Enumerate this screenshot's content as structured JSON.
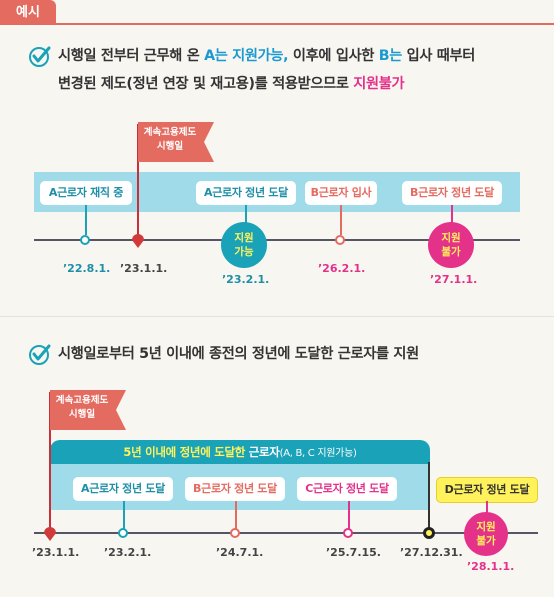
{
  "tab_label": "예시",
  "section1": {
    "line1_pre": "시행일 전부터 근무해 온 ",
    "line1_a": "A는 지원가능,",
    "line1_mid": " 이후에 입사한 ",
    "line1_b": "B는",
    "line1_post": " 입사 때부터",
    "line2_pre": "변경된 제도(정년 연장 및 재고용)를 적용받으므로 ",
    "line2_em": "지원불가",
    "flag_line1": "계속고용제도",
    "flag_line2": "시행일",
    "labels": {
      "a_working": "A근로자 재직 중",
      "a_retire": "A근로자 정년 도달",
      "b_join": "B근로자 입사",
      "b_retire": "B근로자 정년 도달"
    },
    "bubbles": {
      "ok_line1": "지원",
      "ok_line2": "가능",
      "no_line1": "지원",
      "no_line2": "불가"
    },
    "dates": {
      "d1": "’22.8.1.",
      "d2": "’23.1.1.",
      "d3": "’23.2.1.",
      "d4": "’26.2.1.",
      "d5": "’27.1.1."
    }
  },
  "section2": {
    "heading": "시행일로부터 5년 이내에 종전의 정년에 도달한 근로자를 지원",
    "flag_line1": "계속고용제도",
    "flag_line2": "시행일",
    "highlight_pre": "5년 이내에 정년에 도달한",
    "highlight_post": " 근로자",
    "highlight_note": "(A, B, C 지원가능)",
    "labels": {
      "a": "A근로자 정년 도달",
      "b": "B근로자 정년 도달",
      "c": "C근로자 정년 도달",
      "d": "D근로자 정년 도달"
    },
    "bubble_line1": "지원",
    "bubble_line2": "불가",
    "dates": {
      "d1": "’23.1.1.",
      "d2": "’23.2.1.",
      "d3": "’24.7.1.",
      "d4": "’25.7.15.",
      "d5": "’27.12.31.",
      "d6": "’28.1.1."
    }
  },
  "colors": {
    "accent_red": "#e46b60",
    "teal": "#1aa3b8",
    "band": "#9fdbe8",
    "pink": "#e4318a",
    "yellow": "#fff25a"
  }
}
